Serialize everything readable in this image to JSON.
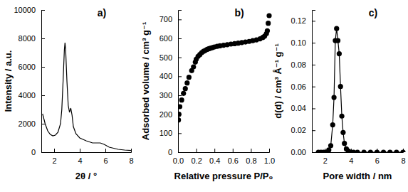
{
  "chart_data": [
    {
      "type": "line",
      "title": "a)",
      "x_label": "2θ / °",
      "y_label": "Intensity / a.u.",
      "xlim": [
        1,
        8
      ],
      "xticks": [
        2,
        4,
        6,
        8
      ],
      "ylim": [
        0,
        10000
      ],
      "yticks": [
        0,
        2000,
        4000,
        6000,
        8000,
        10000
      ],
      "series": [
        {
          "color": "#000000",
          "line_style": "solid",
          "x": [
            1.1,
            1.3,
            1.5,
            1.7,
            1.9,
            2.1,
            2.3,
            2.5,
            2.6,
            2.7,
            2.8,
            2.85,
            2.9,
            3.0,
            3.1,
            3.2,
            3.3,
            3.4,
            3.5,
            3.7,
            4.0,
            4.5,
            5.0,
            5.3,
            5.6,
            5.9,
            6.3,
            7.0,
            7.5,
            8.0
          ],
          "values": [
            2700,
            2000,
            1500,
            1250,
            1150,
            1200,
            1400,
            2000,
            3000,
            5000,
            7200,
            7700,
            7200,
            5000,
            3300,
            2800,
            3100,
            2600,
            1800,
            1300,
            1000,
            800,
            650,
            650,
            650,
            550,
            350,
            200,
            150,
            120
          ]
        }
      ]
    },
    {
      "type": "scatter",
      "title": "b)",
      "x_label": "Relative pressure P/P₀",
      "y_label": "Adsorbed volume / cm³ g⁻¹",
      "xlim": [
        0,
        1
      ],
      "xticks": [
        {
          "value": 0,
          "label": "0.0"
        },
        {
          "value": 0.2,
          "label": "0.2"
        },
        {
          "value": 0.4,
          "label": "0.4"
        },
        {
          "value": 0.6,
          "label": "0.6"
        },
        {
          "value": 0.8,
          "label": "0.8"
        },
        {
          "value": 1,
          "label": "1.0"
        }
      ],
      "ylim": [
        0,
        750
      ],
      "yticks": [
        0,
        100,
        200,
        300,
        400,
        500,
        600,
        700
      ],
      "series": [
        {
          "color": "#000000",
          "marker": "circle",
          "x": [
            0.005,
            0.01,
            0.02,
            0.04,
            0.06,
            0.08,
            0.1,
            0.12,
            0.15,
            0.17,
            0.19,
            0.2,
            0.22,
            0.24,
            0.26,
            0.28,
            0.3,
            0.32,
            0.34,
            0.36,
            0.38,
            0.4,
            0.43,
            0.46,
            0.5,
            0.54,
            0.58,
            0.62,
            0.66,
            0.7,
            0.74,
            0.78,
            0.82,
            0.86,
            0.9,
            0.93,
            0.95,
            0.97,
            0.98,
            0.99,
            1.0
          ],
          "values": [
            170,
            200,
            240,
            275,
            310,
            335,
            365,
            395,
            430,
            450,
            475,
            490,
            505,
            515,
            525,
            532,
            537,
            542,
            546,
            549,
            552,
            555,
            558,
            561,
            564,
            567,
            570,
            572,
            575,
            578,
            581,
            584,
            588,
            592,
            598,
            605,
            612,
            625,
            640,
            680,
            720
          ]
        }
      ]
    },
    {
      "type": "line",
      "title": "c)",
      "x_label": "Pore width / nm",
      "y_label": "d(d) / cm³ Å⁻¹ g⁻¹",
      "xlim": [
        1,
        8
      ],
      "xticks": [
        2,
        4,
        6,
        8
      ],
      "ylim": [
        0,
        0.13
      ],
      "yticks": [
        {
          "value": 0,
          "label": "0.00"
        },
        {
          "value": 0.02,
          "label": "0.02"
        },
        {
          "value": 0.04,
          "label": "0.04"
        },
        {
          "value": 0.06,
          "label": "0.06"
        },
        {
          "value": 0.08,
          "label": "0.08"
        },
        {
          "value": 0.1,
          "label": "0.10"
        },
        {
          "value": 0.12,
          "label": "0.12"
        }
      ],
      "series": [
        {
          "color": "#000000",
          "marker": "circle",
          "line_style": "solid",
          "x": [
            1.5,
            1.7,
            1.9,
            2.1,
            2.3,
            2.45,
            2.6,
            2.7,
            2.8,
            2.9,
            3.0,
            3.1,
            3.2,
            3.3,
            3.4,
            3.5,
            3.65,
            3.8,
            4.0,
            4.2,
            4.5,
            5.0,
            5.5,
            6.0,
            6.5,
            7.0,
            7.5,
            8.0
          ],
          "values": [
            0,
            0,
            0,
            0,
            0.002,
            0.006,
            0.025,
            0.05,
            0.102,
            0.113,
            0.102,
            0.09,
            0.06,
            0.033,
            0.018,
            0.008,
            0.003,
            0.001,
            0,
            0,
            0,
            0,
            0,
            0,
            0,
            0,
            0,
            0
          ]
        }
      ]
    }
  ]
}
